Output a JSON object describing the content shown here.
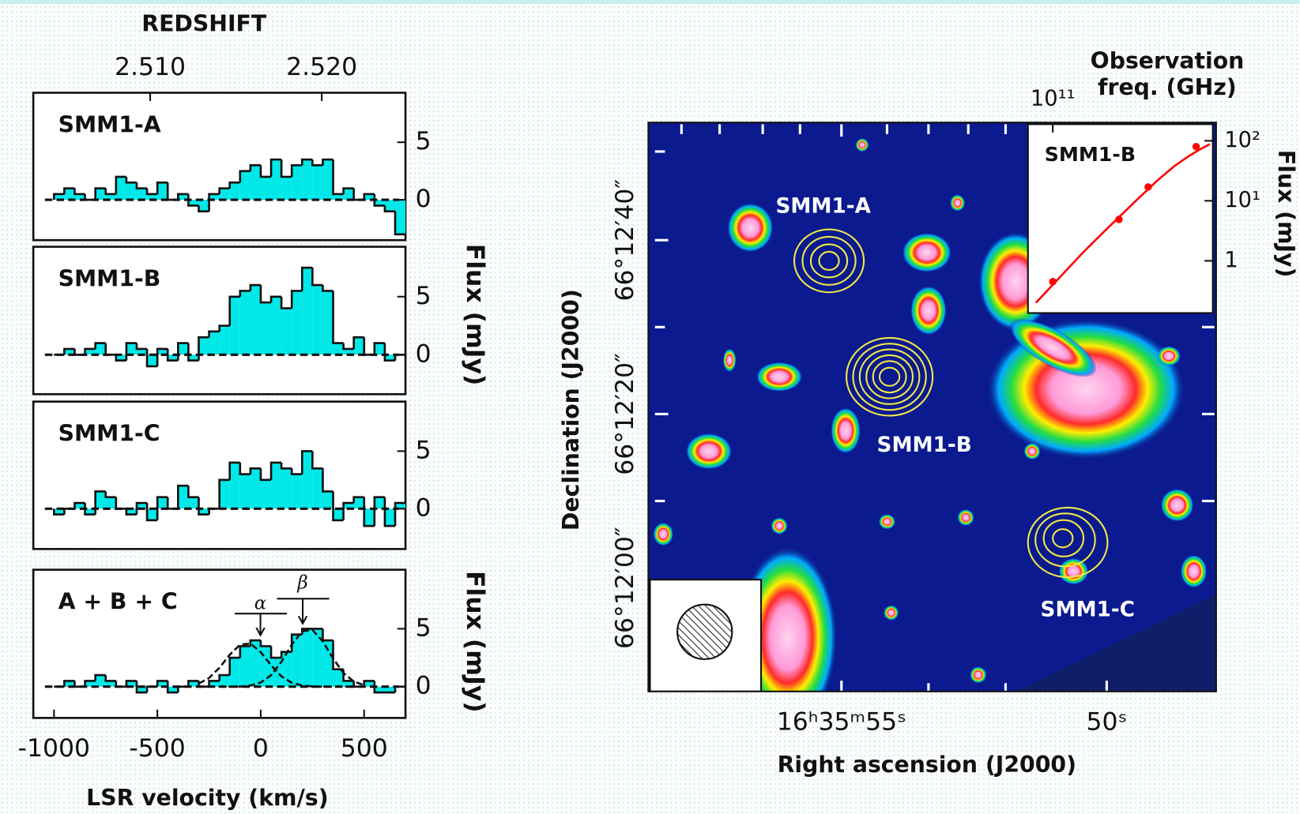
{
  "chart_data": [
    {
      "type": "histogram",
      "title": "SMM1-A",
      "color": "#00e8e8",
      "bins": [
        -1000,
        -950,
        -900,
        -850,
        -800,
        -750,
        -700,
        -650,
        -600,
        -550,
        -500,
        -450,
        -400,
        -350,
        -300,
        -250,
        -200,
        -150,
        -100,
        -50,
        0,
        50,
        100,
        150,
        200,
        250,
        300,
        350,
        400,
        450,
        500,
        550,
        600,
        650,
        700
      ],
      "values": [
        0.5,
        1,
        0.5,
        0,
        1,
        0.5,
        2,
        1.5,
        1,
        0.5,
        1.5,
        0,
        0.5,
        -0.5,
        -1,
        0.5,
        1,
        1.5,
        2.5,
        3,
        2,
        3.5,
        2,
        3,
        3.5,
        3,
        3.5,
        0.5,
        1,
        0,
        0.5,
        -0.5,
        -1,
        -3
      ],
      "xlim": [
        -1100,
        700
      ],
      "ylim": [
        -3.5,
        9.3
      ],
      "yticks": [
        0,
        5
      ],
      "x2label": "REDSHIFT",
      "x2lim": [
        2.50319,
        2.52488
      ],
      "x2ticks": [
        {
          "value": 2.51,
          "label": "2.510"
        },
        {
          "value": 2.52,
          "label": "2.520"
        }
      ]
    },
    {
      "type": "histogram",
      "title": "SMM1-B",
      "color": "#00e8e8",
      "bins": [
        -1000,
        -950,
        -900,
        -850,
        -800,
        -750,
        -700,
        -650,
        -600,
        -550,
        -500,
        -450,
        -400,
        -350,
        -300,
        -250,
        -200,
        -150,
        -100,
        -50,
        0,
        50,
        100,
        150,
        200,
        250,
        300,
        350,
        400,
        450,
        500,
        550,
        600,
        650,
        700
      ],
      "values": [
        0,
        0.5,
        0,
        0.5,
        1,
        0,
        -0.5,
        1,
        0.5,
        -1,
        0.5,
        -0.5,
        1,
        -0.5,
        1.5,
        2,
        2.5,
        5,
        5.5,
        6,
        4.5,
        5,
        4,
        5.5,
        7.5,
        6,
        5.5,
        1,
        0.5,
        1.5,
        0,
        1,
        -0.5,
        0
      ],
      "xlim": [
        -1100,
        700
      ],
      "ylim": [
        -3.4,
        9.3
      ],
      "yticks": [
        0,
        5
      ],
      "ylabel": "Flux (mJy)"
    },
    {
      "type": "histogram",
      "title": "SMM1-C",
      "color": "#00e8e8",
      "bins": [
        -1000,
        -950,
        -900,
        -850,
        -800,
        -750,
        -700,
        -650,
        -600,
        -550,
        -500,
        -450,
        -400,
        -350,
        -300,
        -250,
        -200,
        -150,
        -100,
        -50,
        0,
        50,
        100,
        150,
        200,
        250,
        300,
        350,
        400,
        450,
        500,
        550,
        600,
        650,
        700
      ],
      "values": [
        -0.5,
        0,
        0.5,
        -0.5,
        1.5,
        1,
        0,
        -0.5,
        0.5,
        -1,
        1,
        0,
        2,
        1,
        -0.5,
        0,
        2.5,
        4,
        3,
        3.5,
        2.5,
        4,
        3.5,
        3,
        5,
        3.5,
        1.5,
        -1,
        0.5,
        1,
        -1.5,
        1,
        -1.5,
        0.5
      ],
      "xlim": [
        -1100,
        700
      ],
      "ylim": [
        -3.5,
        9.3
      ],
      "yticks": [
        0,
        5
      ]
    },
    {
      "type": "histogram",
      "title": "A + B + C",
      "color": "#00e8e8",
      "bins": [
        -1000,
        -950,
        -900,
        -850,
        -800,
        -750,
        -700,
        -650,
        -600,
        -550,
        -500,
        -450,
        -400,
        -350,
        -300,
        -250,
        -200,
        -150,
        -100,
        -50,
        0,
        50,
        100,
        150,
        200,
        250,
        300,
        350,
        400,
        450,
        500,
        550,
        600,
        650,
        700
      ],
      "values": [
        0,
        0.5,
        0,
        0.5,
        1,
        0.5,
        0,
        0.5,
        -0.5,
        0,
        0.5,
        -0.5,
        0,
        0.5,
        0,
        0.5,
        1,
        2.5,
        3.5,
        4,
        3.5,
        2.5,
        3,
        4.5,
        5,
        5,
        4,
        1.5,
        0.5,
        0,
        0.5,
        -0.5,
        -0.5,
        0
      ],
      "xlim": [
        -1100,
        700
      ],
      "ylim": [
        -2.7,
        10.1
      ],
      "yticks": [
        0,
        5
      ],
      "xticks": [
        -1000,
        -500,
        0,
        500
      ],
      "xlabel": "LSR velocity (km/s)",
      "ylabel": "Flux (mJy)",
      "lines": [
        {
          "x": [
            -300,
            -250,
            -200,
            -150,
            -100,
            -50,
            0,
            50,
            100,
            150,
            200,
            250,
            300,
            350,
            400,
            450,
            500
          ],
          "values": [
            0.27,
            0.75,
            1.63,
            2.76,
            3.63,
            3.72,
            2.98,
            1.85,
            0.89,
            0.34,
            0.1,
            0.02,
            0,
            0,
            0,
            0,
            0
          ]
        },
        {
          "x": [
            -300,
            -250,
            -200,
            -150,
            -100,
            -50,
            0,
            50,
            100,
            150,
            200,
            250,
            300,
            350,
            400,
            450,
            500
          ],
          "values": [
            0,
            0,
            0,
            0,
            0,
            0.1,
            0.36,
            0.99,
            2.15,
            3.63,
            4.78,
            4.9,
            3.92,
            2.43,
            1.18,
            0.44,
            0.13
          ]
        }
      ],
      "annotations": [
        "α",
        "β"
      ]
    },
    {
      "type": "image",
      "xlabel": "Right ascension (J2000)",
      "ylabel": "Declination (J2000)",
      "xtick_labels": [
        "16ʰ35ᵐ55ˢ",
        "50ˢ"
      ],
      "ytick_labels": [
        "66°12′40″",
        "66°12′20″",
        "66°12′00″"
      ],
      "labels": [
        "SMM1-A",
        "SMM1-B",
        "SMM1-C"
      ]
    },
    {
      "type": "scatter",
      "title": "SMM1-B",
      "xlabel": [
        "Observation",
        "freq. (GHz)"
      ],
      "ylabel": "Flux (mJy)",
      "xscale": "log",
      "yscale": "log",
      "xlim": [
        72000000000,
        830000000000
      ],
      "ylim": [
        0.135,
        189
      ],
      "xticks": [
        {
          "value": 100000000000,
          "label": "10¹¹"
        }
      ],
      "yticks": [
        1,
        {
          "value": 10,
          "label": "10¹"
        },
        {
          "value": 100,
          "label": "10²"
        }
      ],
      "x": [
        100000000000,
        240000000000,
        353000000000,
        666000000000
      ],
      "values": [
        0.45,
        4.9,
        17,
        80
      ],
      "color": "#ff0000",
      "fit": {
        "x": [
          80000000000,
          100000000000,
          150000000000,
          200000000000,
          300000000000,
          400000000000,
          500000000000,
          600000000000,
          700000000000,
          800000000000
        ],
        "values": [
          0.2,
          0.4,
          1.4,
          3.2,
          10,
          22,
          38,
          55,
          72,
          88
        ]
      }
    }
  ]
}
